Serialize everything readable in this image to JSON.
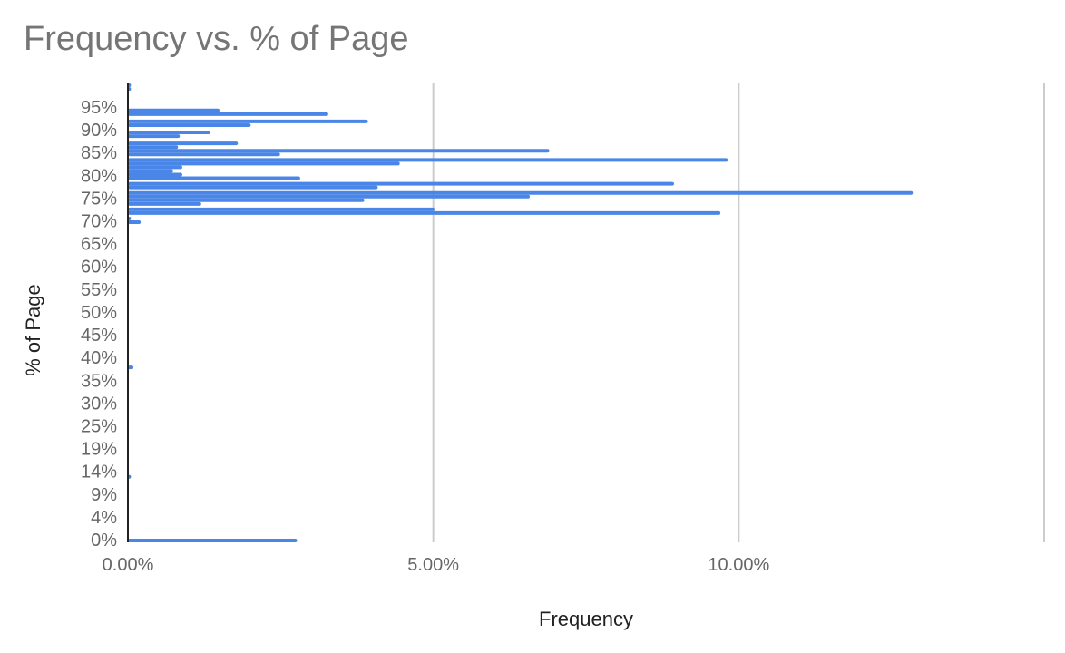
{
  "chart_data": {
    "type": "bar",
    "orientation": "horizontal",
    "title": "Frequency vs. % of Page",
    "xlabel": "Frequency",
    "ylabel": "% of Page",
    "xlim": [
      0,
      15
    ],
    "x_unit": "percent",
    "x_ticks": [
      "0.00%",
      "5.00%",
      "10.00%"
    ],
    "x_tick_values": [
      0,
      5,
      10
    ],
    "y_ticks": [
      "0%",
      "4%",
      "9%",
      "14%",
      "19%",
      "25%",
      "30%",
      "35%",
      "40%",
      "45%",
      "50%",
      "55%",
      "60%",
      "65%",
      "70%",
      "75%",
      "80%",
      "85%",
      "90%",
      "95%"
    ],
    "ylim": [
      0,
      100
    ],
    "grid": true,
    "legend": "none",
    "bar_color": "#4a86e8",
    "series": [
      {
        "values": [
          {
            "y": 99.4,
            "x": 0.05
          },
          {
            "y": 98.6,
            "x": 0.05
          },
          {
            "y": 93.9,
            "x": 1.5
          },
          {
            "y": 93.1,
            "x": 3.28
          },
          {
            "y": 91.5,
            "x": 3.93
          },
          {
            "y": 90.7,
            "x": 2.01
          },
          {
            "y": 89.1,
            "x": 1.35
          },
          {
            "y": 88.3,
            "x": 0.85
          },
          {
            "y": 86.7,
            "x": 1.8
          },
          {
            "y": 85.9,
            "x": 0.82
          },
          {
            "y": 85.1,
            "x": 6.9
          },
          {
            "y": 84.3,
            "x": 2.49
          },
          {
            "y": 83.1,
            "x": 9.82
          },
          {
            "y": 82.3,
            "x": 4.45
          },
          {
            "y": 81.5,
            "x": 0.89
          },
          {
            "y": 80.7,
            "x": 0.74
          },
          {
            "y": 79.9,
            "x": 0.89
          },
          {
            "y": 79.1,
            "x": 2.82
          },
          {
            "y": 77.9,
            "x": 8.94
          },
          {
            "y": 77.1,
            "x": 4.09
          },
          {
            "y": 75.9,
            "x": 12.85
          },
          {
            "y": 75.1,
            "x": 6.58
          },
          {
            "y": 74.3,
            "x": 3.87
          },
          {
            "y": 73.5,
            "x": 1.2
          },
          {
            "y": 72.3,
            "x": 5.02
          },
          {
            "y": 71.5,
            "x": 9.7
          },
          {
            "y": 70.3,
            "x": 0.05
          },
          {
            "y": 69.5,
            "x": 0.21
          },
          {
            "y": 37.8,
            "x": 0.09
          },
          {
            "y": 13.9,
            "x": 0.05
          },
          {
            "y": 0.0,
            "x": 2.77
          }
        ]
      }
    ]
  }
}
